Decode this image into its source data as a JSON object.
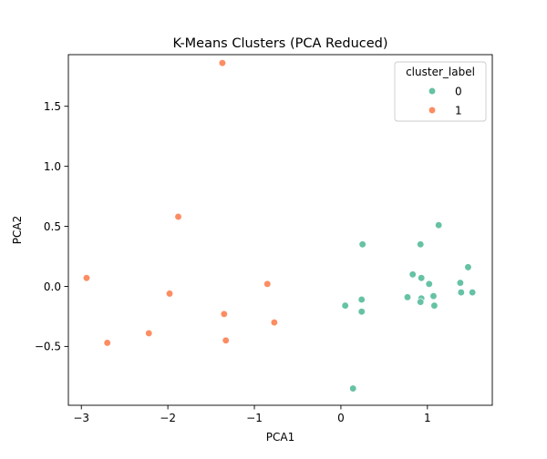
{
  "chart_data": {
    "type": "scatter",
    "title": "K-Means Clusters (PCA Reduced)",
    "xlabel": "PCA1",
    "ylabel": "PCA2",
    "xlim": [
      -3.15,
      1.75
    ],
    "ylim": [
      -0.99,
      1.93
    ],
    "xticks": [
      -3,
      -2,
      -1,
      0,
      1
    ],
    "xtick_labels": [
      "−3",
      "−2",
      "−1",
      "0",
      "1"
    ],
    "yticks": [
      -0.5,
      0.0,
      0.5,
      1.0,
      1.5
    ],
    "ytick_labels": [
      "−0.5",
      "0.0",
      "0.5",
      "1.0",
      "1.5"
    ],
    "grid": false,
    "legend": {
      "title": "cluster_label",
      "placement": "upper-right"
    },
    "series": [
      {
        "name": "0",
        "color": "#66c2a5",
        "points": [
          [
            0.25,
            0.35
          ],
          [
            0.92,
            0.35
          ],
          [
            1.13,
            0.51
          ],
          [
            0.83,
            0.1
          ],
          [
            0.93,
            0.07
          ],
          [
            1.02,
            0.02
          ],
          [
            1.47,
            0.16
          ],
          [
            1.38,
            0.03
          ],
          [
            1.39,
            -0.05
          ],
          [
            1.52,
            -0.05
          ],
          [
            0.77,
            -0.09
          ],
          [
            0.93,
            -0.1
          ],
          [
            0.92,
            -0.13
          ],
          [
            1.07,
            -0.08
          ],
          [
            1.08,
            -0.16
          ],
          [
            0.05,
            -0.16
          ],
          [
            0.24,
            -0.11
          ],
          [
            0.24,
            -0.21
          ],
          [
            0.14,
            -0.85
          ]
        ]
      },
      {
        "name": "1",
        "color": "#fc8d62",
        "points": [
          [
            -1.37,
            1.86
          ],
          [
            -1.88,
            0.58
          ],
          [
            -2.94,
            0.07
          ],
          [
            -1.98,
            -0.06
          ],
          [
            -0.85,
            0.02
          ],
          [
            -1.35,
            -0.23
          ],
          [
            -0.77,
            -0.3
          ],
          [
            -2.22,
            -0.39
          ],
          [
            -2.7,
            -0.47
          ],
          [
            -1.33,
            -0.45
          ]
        ]
      }
    ]
  }
}
